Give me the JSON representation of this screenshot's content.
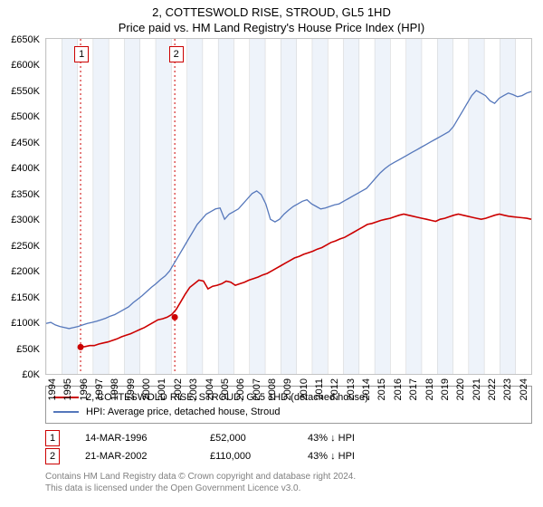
{
  "title_line1": "2, COTTESWOLD RISE, STROUD, GL5 1HD",
  "title_line2": "Price paid vs. HM Land Registry's House Price Index (HPI)",
  "chart": {
    "type": "line",
    "background_color": "#ffffff",
    "border_color": "#c4c4c4",
    "shade_color": "#eef3fa",
    "grid_color": "#d0d0d0",
    "ylim": [
      0,
      650
    ],
    "ytick_step": 50,
    "ytick_prefix": "£",
    "ytick_suffix": "K",
    "x_years": [
      1994,
      1995,
      1996,
      1997,
      1998,
      1999,
      2000,
      2001,
      2002,
      2003,
      2004,
      2005,
      2006,
      2007,
      2008,
      2009,
      2010,
      2011,
      2012,
      2013,
      2014,
      2015,
      2016,
      2017,
      2018,
      2019,
      2020,
      2021,
      2022,
      2023,
      2024
    ],
    "xlim": [
      1994,
      2025
    ],
    "series": [
      {
        "name": "2, COTTESWOLD RISE, STROUD, GL5 1HD (detached house)",
        "color": "#cc0000",
        "line_width": 1.6,
        "data_start_year": 1996.2,
        "data": [
          52,
          53,
          55,
          55,
          58,
          60,
          62,
          65,
          68,
          72,
          75,
          78,
          82,
          86,
          90,
          95,
          100,
          105,
          107,
          110,
          115,
          125,
          140,
          155,
          168,
          175,
          182,
          180,
          165,
          170,
          172,
          175,
          180,
          178,
          172,
          175,
          178,
          182,
          185,
          188,
          192,
          195,
          200,
          205,
          210,
          215,
          220,
          225,
          228,
          232,
          235,
          238,
          242,
          245,
          250,
          255,
          258,
          262,
          265,
          270,
          275,
          280,
          285,
          290,
          292,
          295,
          298,
          300,
          302,
          305,
          308,
          310,
          308,
          306,
          304,
          302,
          300,
          298,
          296,
          300,
          302,
          305,
          308,
          310,
          308,
          306,
          304,
          302,
          300,
          302,
          305,
          308,
          310,
          308,
          306,
          305,
          304,
          303,
          302,
          300
        ]
      },
      {
        "name": "HPI: Average price, detached house, Stroud",
        "color": "#5577bb",
        "line_width": 1.3,
        "data_start_year": 1994,
        "data": [
          98,
          100,
          95,
          92,
          90,
          88,
          90,
          92,
          95,
          98,
          100,
          102,
          105,
          108,
          112,
          115,
          120,
          125,
          130,
          138,
          145,
          152,
          160,
          168,
          175,
          183,
          190,
          200,
          215,
          230,
          245,
          260,
          275,
          290,
          300,
          310,
          315,
          320,
          322,
          300,
          310,
          315,
          320,
          330,
          340,
          350,
          355,
          348,
          330,
          300,
          295,
          300,
          310,
          318,
          325,
          330,
          335,
          338,
          330,
          325,
          320,
          322,
          325,
          328,
          330,
          335,
          340,
          345,
          350,
          355,
          360,
          370,
          380,
          390,
          398,
          405,
          410,
          415,
          420,
          425,
          430,
          435,
          440,
          445,
          450,
          455,
          460,
          465,
          470,
          480,
          495,
          510,
          525,
          540,
          550,
          545,
          540,
          530,
          525,
          535,
          540,
          545,
          542,
          538,
          540,
          545,
          548
        ]
      }
    ],
    "sale_markers": [
      {
        "index": "1",
        "year": 1996.2,
        "marker_color": "#cc0000"
      },
      {
        "index": "2",
        "year": 2002.22,
        "marker_color": "#cc0000"
      }
    ],
    "sale_dots": [
      {
        "year": 1996.2,
        "value": 52,
        "color": "#cc0000"
      },
      {
        "year": 2002.22,
        "value": 110,
        "color": "#cc0000"
      }
    ]
  },
  "legend": [
    {
      "color": "#cc0000",
      "label": "2, COTTESWOLD RISE, STROUD, GL5 1HD (detached house)"
    },
    {
      "color": "#5577bb",
      "label": "HPI: Average price, detached house, Stroud"
    }
  ],
  "sales": [
    {
      "index": "1",
      "date": "14-MAR-1996",
      "price": "£52,000",
      "diff": "43% ↓ HPI"
    },
    {
      "index": "2",
      "date": "21-MAR-2002",
      "price": "£110,000",
      "diff": "43% ↓ HPI"
    }
  ],
  "footer_line1": "Contains HM Land Registry data © Crown copyright and database right 2024.",
  "footer_line2": "This data is licensed under the Open Government Licence v3.0."
}
